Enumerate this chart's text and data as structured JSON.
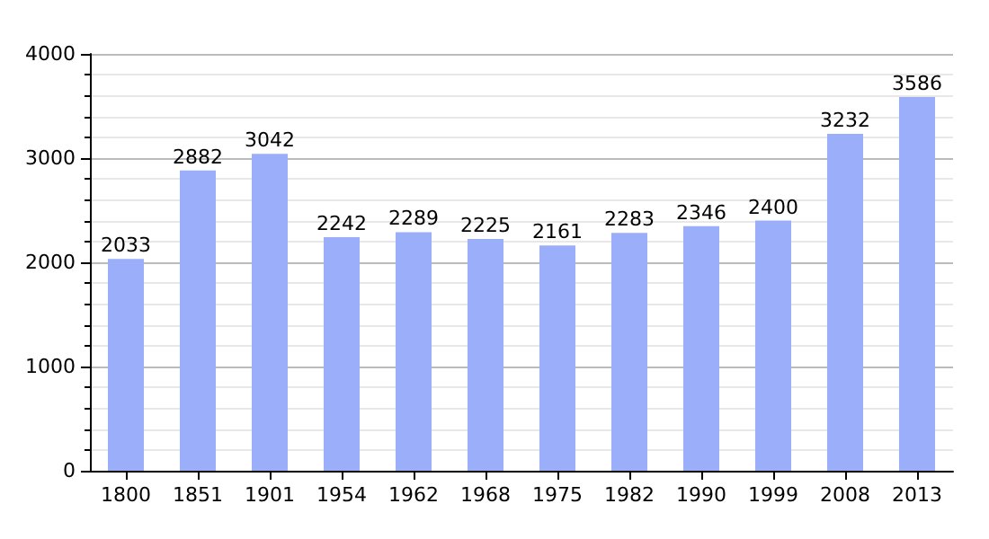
{
  "chart_data": {
    "type": "bar",
    "categories": [
      "1800",
      "1851",
      "1901",
      "1954",
      "1962",
      "1968",
      "1975",
      "1982",
      "1990",
      "1999",
      "2008",
      "2013"
    ],
    "values": [
      2033,
      2882,
      3042,
      2242,
      2289,
      2225,
      2161,
      2283,
      2346,
      2400,
      3232,
      3586
    ],
    "color": "#9aaefa",
    "ylim": [
      0,
      4000
    ],
    "yticks": [
      0,
      1000,
      2000,
      3000,
      4000
    ],
    "grid": "y",
    "data_labels": true
  }
}
